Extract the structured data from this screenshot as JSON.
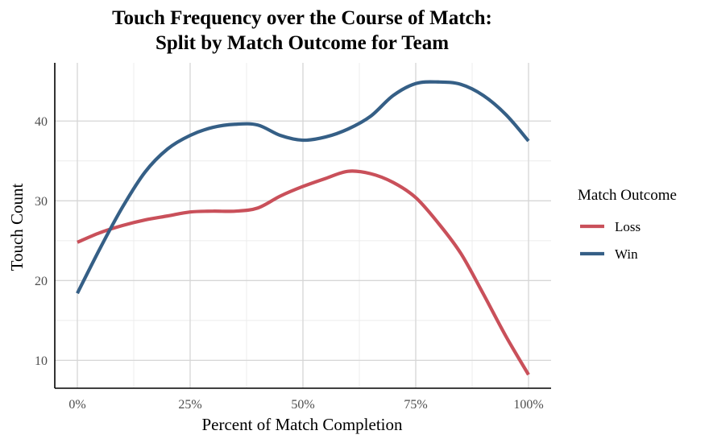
{
  "chart_data": {
    "type": "line",
    "title_line1": "Touch Frequency over the Course of Match:",
    "title_line2": "Split by Match Outcome for Team",
    "xlabel": "Percent of Match Completion",
    "ylabel": "Touch Count",
    "xlim": [
      0,
      100
    ],
    "ylim": [
      6.5,
      47.3
    ],
    "x_ticks": [
      0,
      25,
      50,
      75,
      100
    ],
    "x_tick_labels": [
      "0%",
      "25%",
      "50%",
      "75%",
      "100%"
    ],
    "y_ticks": [
      10,
      20,
      30,
      40
    ],
    "y_tick_labels": [
      "10",
      "20",
      "30",
      "40"
    ],
    "grid": true,
    "legend_title": "Match Outcome",
    "legend_position": "right",
    "x": [
      0,
      5,
      10,
      15,
      20,
      25,
      30,
      35,
      40,
      45,
      50,
      55,
      60,
      65,
      70,
      75,
      80,
      85,
      90,
      95,
      100
    ],
    "series": [
      {
        "name": "Loss",
        "color": "#c9505a",
        "values": [
          24.8,
          26.0,
          26.9,
          27.6,
          28.1,
          28.6,
          28.7,
          28.7,
          29.1,
          30.6,
          31.8,
          32.8,
          33.7,
          33.4,
          32.3,
          30.4,
          27.2,
          23.4,
          18.3,
          13.0,
          8.2
        ]
      },
      {
        "name": "Win",
        "color": "#355f86",
        "values": [
          18.4,
          24.0,
          29.2,
          33.6,
          36.5,
          38.2,
          39.2,
          39.6,
          39.5,
          38.2,
          37.6,
          38.0,
          39.0,
          40.6,
          43.2,
          44.7,
          44.9,
          44.6,
          43.2,
          40.8,
          37.5
        ]
      }
    ]
  }
}
